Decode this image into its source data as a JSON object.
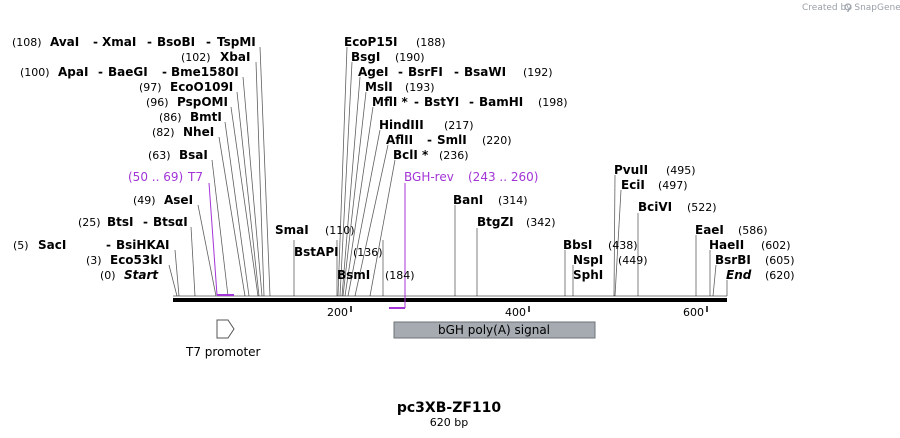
{
  "credit": "Created by SnapGene",
  "title": "pc3XB-ZF110",
  "length_label": "620 bp",
  "colors": {
    "primer": "#a335d6",
    "feature_fill": "#a6abb2",
    "backbone": "#000000",
    "credit": "#9aa0a8"
  },
  "sites": [
    {
      "name": "AvaI",
      "pos": "(108)"
    },
    {
      "name": "XmaI"
    },
    {
      "name": "BsoBI"
    },
    {
      "name": "TspMI"
    },
    {
      "name": "XbaI",
      "pos": "(102)"
    },
    {
      "name": "ApaI",
      "pos": "(100)"
    },
    {
      "name": "BaeGI"
    },
    {
      "name": "Bme1580I"
    },
    {
      "name": "EcoO109I",
      "pos": "(97)"
    },
    {
      "name": "PspOMI",
      "pos": "(96)"
    },
    {
      "name": "BmtI",
      "pos": "(86)"
    },
    {
      "name": "NheI",
      "pos": "(82)"
    },
    {
      "name": "BsaI",
      "pos": "(63)"
    },
    {
      "name": "AseI",
      "pos": "(49)"
    },
    {
      "name": "BtsI",
      "pos": "(25)"
    },
    {
      "name": "BtsαI"
    },
    {
      "name": "SacI",
      "pos": "(5)"
    },
    {
      "name": "BsiHKAI"
    },
    {
      "name": "Eco53kI",
      "pos": "(3)"
    },
    {
      "name": "SmaI",
      "pos": "(110)"
    },
    {
      "name": "BstAPI",
      "pos": "(136)"
    },
    {
      "name": "BsmI",
      "pos": "(184)"
    },
    {
      "name": "EcoP15I",
      "pos": "(188)"
    },
    {
      "name": "BsgI",
      "pos": "(190)"
    },
    {
      "name": "AgeI",
      "pos": "(192)"
    },
    {
      "name": "BsrFI"
    },
    {
      "name": "BsaWI"
    },
    {
      "name": "MslI",
      "pos": "(193)"
    },
    {
      "name": "MflI *",
      "pos": "(198)"
    },
    {
      "name": "BstYI"
    },
    {
      "name": "BamHI"
    },
    {
      "name": "HindIII",
      "pos": "(217)"
    },
    {
      "name": "AflII",
      "pos": "(220)"
    },
    {
      "name": "SmlI"
    },
    {
      "name": "BclI *",
      "pos": "(236)"
    },
    {
      "name": "BanI",
      "pos": "(314)"
    },
    {
      "name": "BtgZI",
      "pos": "(342)"
    },
    {
      "name": "BbsI",
      "pos": "(438)"
    },
    {
      "name": "NspI",
      "pos": "(449)"
    },
    {
      "name": "SphI"
    },
    {
      "name": "PvuII",
      "pos": "(495)"
    },
    {
      "name": "EciI",
      "pos": "(497)"
    },
    {
      "name": "BciVI",
      "pos": "(522)"
    },
    {
      "name": "EaeI",
      "pos": "(586)"
    },
    {
      "name": "HaeII",
      "pos": "(602)"
    },
    {
      "name": "BsrBI",
      "pos": "(605)"
    }
  ],
  "ends": [
    {
      "name": "Start",
      "pos": "(0)"
    },
    {
      "name": "End",
      "pos": "(620)"
    }
  ],
  "primers": [
    {
      "name": "T7",
      "range": "(50 .. 69)"
    },
    {
      "name": "BGH-rev",
      "range": "(243 .. 260)"
    }
  ],
  "features": [
    {
      "name": "T7 promoter",
      "direction": "forward"
    },
    {
      "name": "bGH poly(A) signal"
    }
  ],
  "ruler": [
    "200",
    "400",
    "600"
  ]
}
